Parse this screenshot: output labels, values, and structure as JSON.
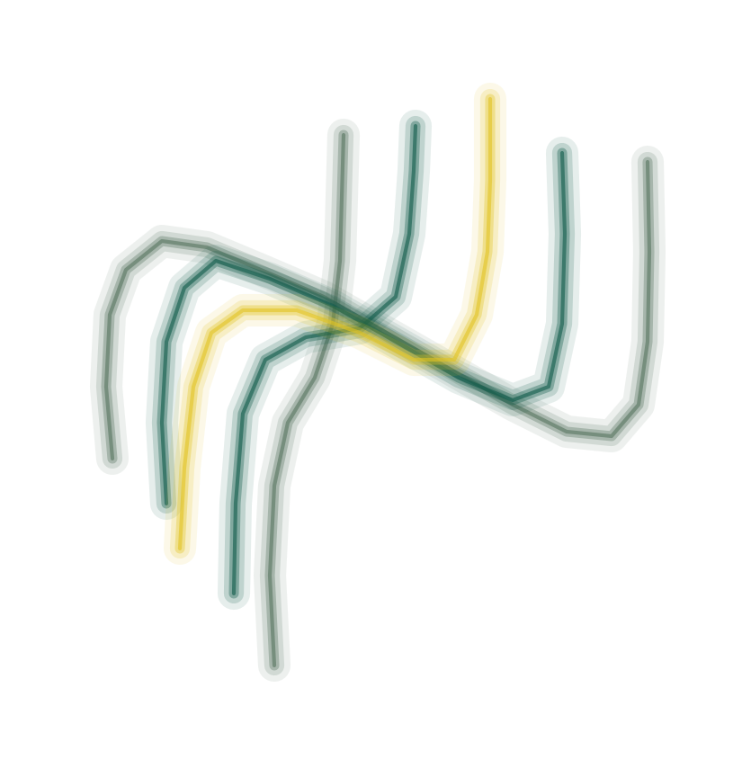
{
  "chart_data": {
    "type": "line",
    "tick_labels": false,
    "xlim": [
      0,
      825
    ],
    "ylim": [
      864,
      0
    ],
    "series": [
      {
        "color": "#56745f",
        "x": [
          125,
          118,
          122,
          140,
          180,
          230,
          290,
          360,
          430,
          500,
          570,
          630,
          680,
          710,
          720,
          722,
          720
        ],
        "values": [
          510,
          430,
          350,
          300,
          268,
          275,
          300,
          330,
          370,
          410,
          450,
          480,
          485,
          450,
          380,
          280,
          180
        ]
      },
      {
        "color": "#56745f",
        "x": [
          305,
          300,
          305,
          320,
          350,
          370,
          378,
          380,
          382
        ],
        "values": [
          740,
          640,
          540,
          470,
          420,
          360,
          290,
          220,
          150
        ]
      },
      {
        "color": "#0e5a49",
        "x": [
          185,
          180,
          185,
          205,
          240,
          300,
          370,
          440,
          510,
          570,
          610,
          625,
          628,
          625
        ],
        "values": [
          560,
          470,
          380,
          320,
          290,
          310,
          340,
          380,
          420,
          445,
          430,
          360,
          260,
          170
        ]
      },
      {
        "color": "#0e5a49",
        "x": [
          260,
          262,
          270,
          295,
          340,
          400,
          440,
          455,
          460,
          462
        ],
        "values": [
          660,
          560,
          460,
          400,
          375,
          365,
          330,
          260,
          190,
          140
        ]
      },
      {
        "color": "#e2c422",
        "x": [
          200,
          205,
          215,
          235,
          270,
          330,
          400,
          460,
          505,
          530,
          542,
          545,
          545
        ],
        "values": [
          610,
          520,
          430,
          370,
          345,
          345,
          370,
          400,
          400,
          350,
          280,
          200,
          110
        ]
      }
    ]
  }
}
